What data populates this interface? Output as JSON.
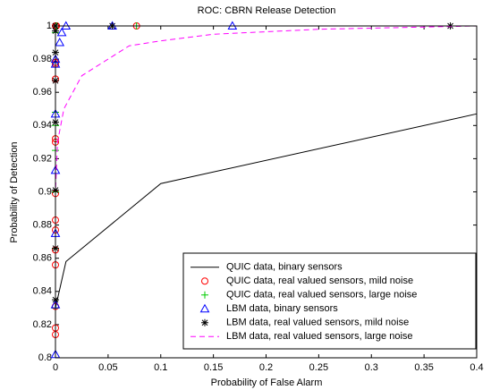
{
  "chart_data": {
    "type": "line",
    "title": "ROC: CBRN Release Detection",
    "xlabel": "Probability of False Alarm",
    "ylabel": "Probability of Detection",
    "xlim": [
      0,
      0.4
    ],
    "ylim": [
      0.8,
      1
    ],
    "xticks": [
      0,
      0.05,
      0.1,
      0.15,
      0.2,
      0.25,
      0.3,
      0.35,
      0.4
    ],
    "yticks": [
      0.8,
      0.82,
      0.84,
      0.86,
      0.88,
      0.9,
      0.92,
      0.94,
      0.96,
      0.98,
      1
    ],
    "legend": "southeast",
    "series": [
      {
        "name": "QUIC data, binary sensors",
        "color": "#000000",
        "marker": "none",
        "linestyle": "-",
        "x": [
          0,
          0,
          0.01,
          0.1,
          0.4
        ],
        "values": [
          0.8,
          0.83,
          0.858,
          0.905,
          0.947
        ]
      },
      {
        "name": "QUIC data, real valued sensors, mild noise",
        "color": "#ff0000",
        "marker": "o",
        "linestyle": "none",
        "x": [
          0,
          0,
          0,
          0,
          0,
          0,
          0,
          0,
          0,
          0,
          0,
          0,
          0,
          0,
          0.001,
          0.077
        ],
        "values": [
          0.814,
          0.818,
          0.831,
          0.856,
          0.865,
          0.877,
          0.883,
          0.899,
          0.93,
          0.932,
          0.968,
          0.977,
          0.978,
          1,
          1,
          1
        ]
      },
      {
        "name": "QUIC data, real valued sensors, large noise",
        "color": "#00cc00",
        "marker": "+",
        "linestyle": "none",
        "x": [
          0,
          0,
          0,
          0,
          0,
          0,
          0,
          0,
          0,
          0.001,
          0.077
        ],
        "values": [
          0.83,
          0.866,
          0.9,
          0.925,
          0.94,
          0.948,
          0.978,
          0.996,
          1,
          1,
          1
        ]
      },
      {
        "name": "LBM data, binary sensors",
        "color": "#0000ff",
        "marker": "^",
        "linestyle": "none",
        "x": [
          0,
          0,
          0,
          0,
          0,
          0,
          0,
          0.004,
          0.006,
          0.01,
          0.054,
          0.168
        ],
        "values": [
          0.802,
          0.832,
          0.875,
          0.913,
          0.947,
          0.977,
          0.98,
          0.99,
          0.996,
          1,
          1,
          1
        ]
      },
      {
        "name": "LBM data, real valued sensors, mild noise",
        "color": "#000000",
        "marker": "*",
        "linestyle": "none",
        "x": [
          0,
          0,
          0,
          0,
          0,
          0,
          0,
          0,
          0.054,
          0.375
        ],
        "values": [
          0.835,
          0.866,
          0.901,
          0.942,
          0.967,
          0.984,
          0.997,
          1,
          1,
          1
        ]
      },
      {
        "name": "LBM data, real valued sensors, large noise",
        "color": "#ff00ff",
        "marker": "none",
        "linestyle": "--",
        "x": [
          0,
          0,
          0.002,
          0.008,
          0.025,
          0.05,
          0.07,
          0.1,
          0.15,
          0.25,
          0.4
        ],
        "values": [
          0.8,
          0.9,
          0.93,
          0.95,
          0.97,
          0.98,
          0.988,
          0.991,
          0.995,
          0.998,
          1
        ]
      }
    ]
  }
}
